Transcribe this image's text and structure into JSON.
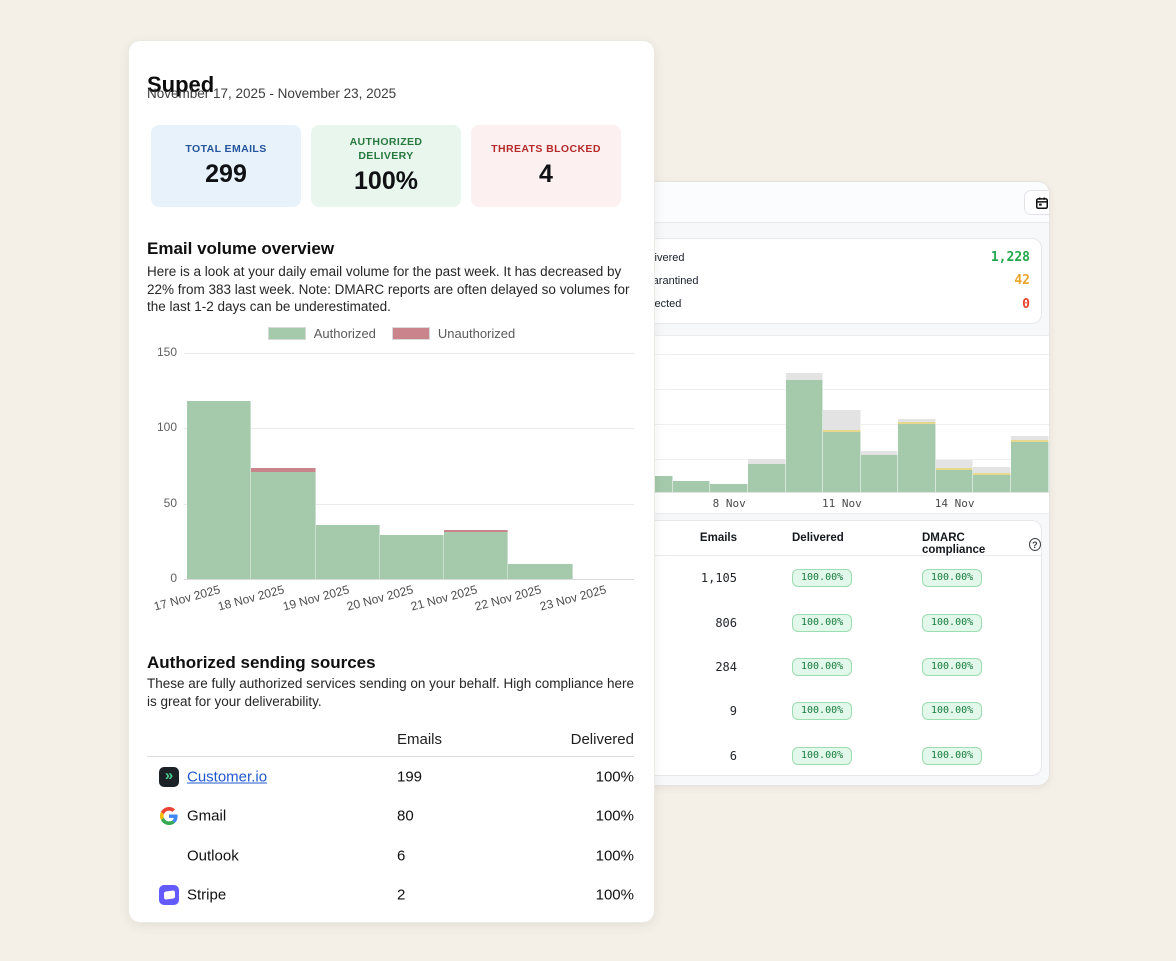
{
  "page": {
    "background": "#f4f0e8"
  },
  "report": {
    "title": "Suped",
    "date_range": "November 17, 2025 - November 23, 2025",
    "stats": [
      {
        "label": "TOTAL EMAILS",
        "value": "299",
        "bg": "#e7f2fb",
        "label_color": "#24549b"
      },
      {
        "label": "AUTHORIZED DELIVERY",
        "value": "100%",
        "bg": "#e9f6ee",
        "label_color": "#27793f"
      },
      {
        "label": "THREATS BLOCKED",
        "value": "4",
        "bg": "#fdf0f0",
        "label_color": "#b62a2a"
      }
    ],
    "volume_section": {
      "heading": "Email volume overview",
      "description": "Here is a look at your daily email volume for the past week. It has decreased by 22% from 383 last week. Note: DMARC reports are often delayed so volumes for the last 1-2 days can be underestimated.",
      "legend": [
        {
          "label": "Authorized",
          "color": "#a5c9ab"
        },
        {
          "label": "Unauthorized",
          "color": "#c9858b"
        }
      ]
    },
    "chart_data": {
      "type": "bar",
      "stacked": true,
      "categories": [
        "17 Nov 2025",
        "18 Nov 2025",
        "19 Nov 2025",
        "20 Nov 2025",
        "21 Nov 2025",
        "22 Nov 2025",
        "23 Nov 2025"
      ],
      "series": [
        {
          "name": "Authorized",
          "color": "#a5c9ab",
          "values": [
            118,
            71,
            36,
            29,
            31,
            10,
            0
          ]
        },
        {
          "name": "Unauthorized",
          "color": "#c9858b",
          "values": [
            0,
            3,
            0,
            0,
            1,
            0,
            0
          ]
        }
      ],
      "ylim": [
        0,
        150
      ],
      "yticks": [
        0,
        50,
        100,
        150
      ],
      "grid": true,
      "legend_position": "top"
    },
    "sources_section": {
      "heading": "Authorized sending sources",
      "description": "These are fully authorized services sending on your behalf. High compliance here is great for your deliverability.",
      "col_emails": "Emails",
      "col_delivered": "Delivered",
      "rows": [
        {
          "name": "Customer.io",
          "emails": "199",
          "delivered": "100%",
          "icon": "customerio-logo",
          "is_link": true
        },
        {
          "name": "Gmail",
          "emails": "80",
          "delivered": "100%",
          "icon": "gmail-logo",
          "is_link": false
        },
        {
          "name": "Outlook",
          "emails": "6",
          "delivered": "100%",
          "icon": "microsoft-logo",
          "is_link": false
        },
        {
          "name": "Stripe",
          "emails": "2",
          "delivered": "100%",
          "icon": "stripe-logo",
          "is_link": false
        }
      ]
    }
  },
  "dashboard": {
    "toolbar": {
      "date_button_icon": "calendar-icon"
    },
    "stats": [
      {
        "label": "Delivered",
        "value": "1,228",
        "color": "#21a94c"
      },
      {
        "label": "Quarantined",
        "value": "42",
        "color": "#eaa52b"
      },
      {
        "label": "Rejected",
        "value": "0",
        "color": "#e8402f"
      }
    ],
    "chart_data": {
      "type": "bar",
      "stacked": true,
      "note": "y-axis labels hidden behind front card; heights are relative pixel values",
      "x_ticks": [
        "8 Nov",
        "11 Nov",
        "14 Nov"
      ],
      "tick_bar_index": [
        2,
        5,
        8
      ],
      "colors": {
        "green": "#a5c9ab",
        "yellow": "#e6d88e",
        "gray": "#e3e3e4"
      },
      "bars": [
        {
          "green": 16,
          "yellow": 0,
          "gray": 0
        },
        {
          "green": 11,
          "yellow": 0,
          "gray": 0
        },
        {
          "green": 8,
          "yellow": 0,
          "gray": 0
        },
        {
          "green": 28,
          "yellow": 0,
          "gray": 5
        },
        {
          "green": 112,
          "yellow": 0,
          "gray": 7
        },
        {
          "green": 60,
          "yellow": 2,
          "gray": 20
        },
        {
          "green": 37,
          "yellow": 0,
          "gray": 4
        },
        {
          "green": 68,
          "yellow": 2,
          "gray": 3
        },
        {
          "green": 22,
          "yellow": 2,
          "gray": 8
        },
        {
          "green": 17,
          "yellow": 2,
          "gray": 6
        },
        {
          "green": 50,
          "yellow": 2,
          "gray": 4
        }
      ]
    },
    "table": {
      "col_emails": "Emails",
      "col_delivered": "Delivered",
      "col_dmarc": "DMARC compliance",
      "help_glyph": "?",
      "rows": [
        {
          "emails": "1,105",
          "delivered": "100.00%",
          "dmarc": "100.00%"
        },
        {
          "emails": "806",
          "delivered": "100.00%",
          "dmarc": "100.00%"
        },
        {
          "emails": "284",
          "delivered": "100.00%",
          "dmarc": "100.00%"
        },
        {
          "emails": "9",
          "delivered": "100.00%",
          "dmarc": "100.00%"
        },
        {
          "emails": "6",
          "delivered": "100.00%",
          "dmarc": "100.00%"
        }
      ]
    }
  }
}
